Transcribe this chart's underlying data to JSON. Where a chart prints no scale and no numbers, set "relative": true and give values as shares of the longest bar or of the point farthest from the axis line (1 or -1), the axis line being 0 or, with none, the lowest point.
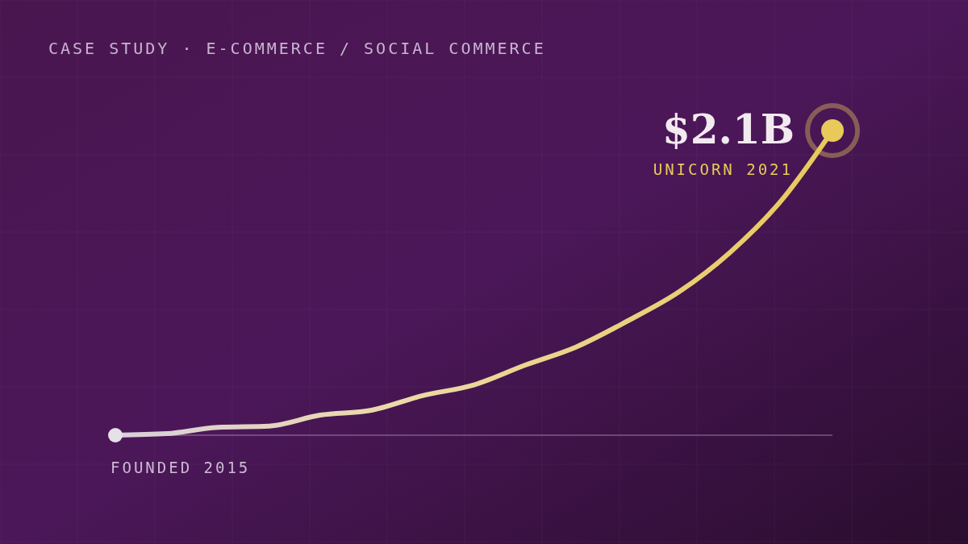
{
  "chart_data": {
    "type": "line",
    "relative": true,
    "title": "CASE STUDY · E-COMMERCE / SOCIAL COMMERCE",
    "categories": [
      null,
      null,
      null,
      null,
      null,
      null,
      null,
      null,
      null,
      null,
      null,
      null,
      null,
      null,
      null
    ],
    "series": [
      {
        "color": "#e8c95a",
        "values": [
          0,
          0.005,
          0.026,
          0.03,
          0.066,
          0.082,
          0.13,
          0.165,
          0.23,
          0.29,
          0.375,
          0.47,
          0.6,
          0.77,
          1
        ]
      }
    ],
    "annotations": [
      "$2.1B",
      "UNICORN 2021",
      "FOUNDED 2015"
    ]
  }
}
